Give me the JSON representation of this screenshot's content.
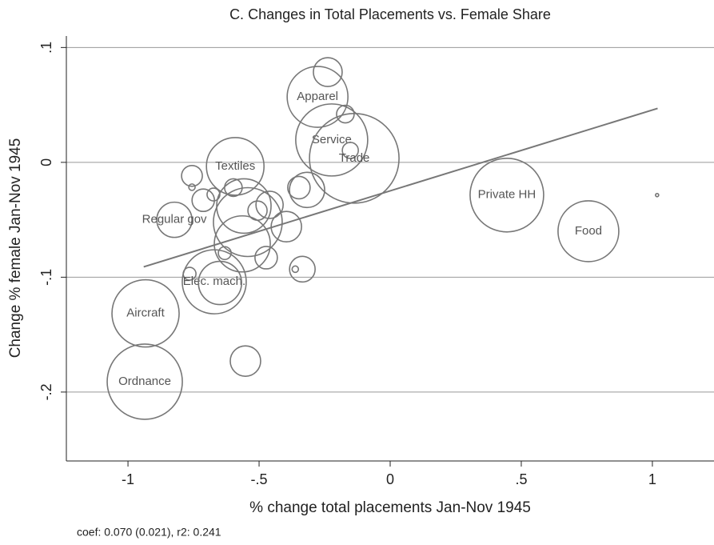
{
  "chart_data": {
    "type": "bubble",
    "title": "C. Changes in Total Placements vs. Female Share",
    "xlabel": "% change total placements Jan-Nov 1945",
    "ylabel": "Change % female Jan-Nov 1945",
    "note": "coef: 0.070 (0.021), r2: 0.241",
    "color": "#777777",
    "grid": true,
    "xlim": [
      -1.235,
      1.235
    ],
    "ylim": [
      -0.26,
      0.11
    ],
    "xticks": [
      -1,
      {
        "value": -0.5,
        "label": "-.5"
      },
      0,
      {
        "value": 0.5,
        "label": ".5"
      },
      1
    ],
    "yticks": [
      {
        "value": 0.1,
        "label": ".1"
      },
      0,
      {
        "value": -0.1,
        "label": "-.1"
      },
      {
        "value": -0.2,
        "label": "-.2"
      }
    ],
    "x": [
      -0.238,
      -0.277,
      -0.171,
      -0.223,
      -0.152,
      -0.137,
      0.445,
      1.018,
      0.756,
      -0.591,
      -0.756,
      -0.756,
      -0.598,
      -0.713,
      -0.674,
      -0.558,
      -0.543,
      -0.506,
      -0.46,
      -0.348,
      -0.317,
      -0.396,
      -0.823,
      -0.564,
      -0.473,
      -0.631,
      -0.765,
      -0.671,
      -0.649,
      -0.335,
      -0.362,
      -0.933,
      -0.552,
      -0.936
    ],
    "y": [
      0.0786,
      0.057,
      0.042,
      0.0195,
      0.0104,
      0.0035,
      -0.0285,
      -0.0285,
      -0.06,
      -0.0035,
      -0.0118,
      -0.0216,
      -0.022,
      -0.033,
      -0.028,
      -0.038,
      -0.052,
      -0.042,
      -0.037,
      -0.022,
      -0.024,
      -0.056,
      -0.05,
      -0.071,
      -0.083,
      -0.079,
      -0.097,
      -0.104,
      -0.105,
      -0.093,
      -0.093,
      -0.1315,
      -0.173,
      -0.191
    ],
    "sizes": [
      18,
      38,
      11,
      45,
      10,
      56,
      46,
      2,
      38,
      36,
      13,
      4,
      11,
      14,
      8,
      34,
      43,
      12,
      17,
      14,
      22,
      19,
      22,
      35,
      14,
      8,
      8,
      40,
      27,
      16,
      4,
      42,
      19,
      47
    ],
    "labels": [
      null,
      "Apparel",
      null,
      "Service",
      null,
      "Trade",
      "Private HH",
      null,
      "Food",
      "Textiles",
      null,
      null,
      null,
      null,
      null,
      null,
      null,
      null,
      null,
      null,
      null,
      null,
      "Regular gov",
      null,
      null,
      null,
      null,
      "Elec. mach.",
      null,
      null,
      null,
      "Aircraft",
      null,
      "Ordnance"
    ],
    "fit_line": {
      "x": [
        -0.94,
        1.02
      ],
      "y": [
        -0.091,
        0.047
      ]
    }
  }
}
